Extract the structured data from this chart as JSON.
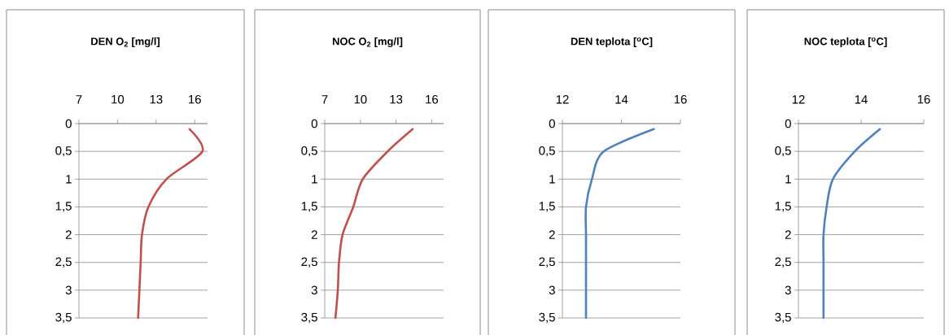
{
  "chart_data": [
    {
      "type": "line",
      "title": "DEN O$_{2}$ [mg/l]",
      "color": "#c0504d",
      "x": [
        15.6,
        16.6,
        13.8,
        12.4,
        11.9,
        11.8,
        11.7,
        11.6
      ],
      "values": [
        0.1,
        0.5,
        1,
        1.5,
        2,
        2.5,
        3,
        3.5
      ],
      "xlim": [
        7,
        17
      ],
      "xticks": [
        7,
        10,
        13,
        16
      ],
      "ylim": [
        3.5,
        0
      ],
      "yticks": [
        0,
        {
          "value": 0.5,
          "label": "0,5"
        },
        1,
        {
          "value": 1.5,
          "label": "1,5"
        },
        2,
        {
          "value": 2.5,
          "label": "2,5"
        },
        3,
        {
          "value": 3.5,
          "label": "3,5"
        }
      ],
      "grid": "y"
    },
    {
      "type": "line",
      "title": "NOC O$_{2}$ [mg/l]",
      "color": "#c0504d",
      "x": [
        14.4,
        12.3,
        10.2,
        9.4,
        8.5,
        8.2,
        8.1,
        7.9
      ],
      "values": [
        0.1,
        0.5,
        1,
        1.5,
        2,
        2.5,
        3,
        3.5
      ],
      "xlim": [
        7,
        17
      ],
      "xticks": [
        7,
        10,
        13,
        16
      ],
      "ylim": [
        3.5,
        0
      ],
      "yticks": [
        0,
        {
          "value": 0.5,
          "label": "0,5"
        },
        1,
        {
          "value": 1.5,
          "label": "1,5"
        },
        2,
        {
          "value": 2.5,
          "label": "2,5"
        },
        3,
        {
          "value": 3.5,
          "label": "3,5"
        }
      ],
      "grid": "y"
    },
    {
      "type": "line",
      "title": "DEN teplota [$^{o}$C]",
      "color": "#4f81bd",
      "x": [
        15.1,
        13.4,
        13.0,
        12.8,
        12.8,
        12.8,
        12.8,
        12.8
      ],
      "values": [
        0.1,
        0.5,
        1,
        1.5,
        2,
        2.5,
        3,
        3.5
      ],
      "xlim": [
        12,
        16
      ],
      "xticks": [
        12,
        14,
        16
      ],
      "ylim": [
        3.5,
        0
      ],
      "yticks": [
        0,
        {
          "value": 0.5,
          "label": "0,5"
        },
        1,
        {
          "value": 1.5,
          "label": "1,5"
        },
        2,
        {
          "value": 2.5,
          "label": "2,5"
        },
        3,
        {
          "value": 3.5,
          "label": "3,5"
        }
      ],
      "grid": "y"
    },
    {
      "type": "line",
      "title": "NOC teplota [$^{o}$C]",
      "color": "#4f81bd",
      "x": [
        14.6,
        13.8,
        13.1,
        12.9,
        12.8,
        12.8,
        12.8,
        12.8
      ],
      "values": [
        0.1,
        0.5,
        1,
        1.5,
        2,
        2.5,
        3,
        3.5
      ],
      "xlim": [
        12,
        16
      ],
      "xticks": [
        12,
        14,
        16
      ],
      "ylim": [
        3.5,
        0
      ],
      "yticks": [
        0,
        {
          "value": 0.5,
          "label": "0,5"
        },
        1,
        {
          "value": 1.5,
          "label": "1,5"
        },
        2,
        {
          "value": 2.5,
          "label": "2,5"
        },
        3,
        {
          "value": 3.5,
          "label": "3,5"
        }
      ],
      "grid": "y"
    }
  ]
}
